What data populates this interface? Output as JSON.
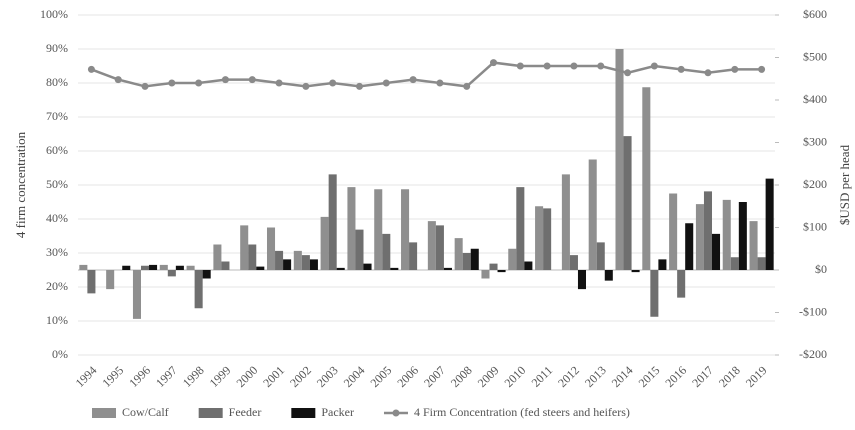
{
  "chart_data": {
    "type": "bar",
    "categories": [
      "1994",
      "1995",
      "1996",
      "1997",
      "1998",
      "1999",
      "2000",
      "2001",
      "2002",
      "2003",
      "2004",
      "2005",
      "2006",
      "2007",
      "2008",
      "2009",
      "2010",
      "2011",
      "2012",
      "2013",
      "2014",
      "2015",
      "2016",
      "2017",
      "2018",
      "2019"
    ],
    "y_label": "4 firm concentration",
    "y2_label": "$USD per head",
    "ylim": [
      0,
      100
    ],
    "yticks": [
      {
        "value": 0,
        "label": "0%"
      },
      {
        "value": 10,
        "label": "10%"
      },
      {
        "value": 20,
        "label": "20%"
      },
      {
        "value": 30,
        "label": "30%"
      },
      {
        "value": 40,
        "label": "40%"
      },
      {
        "value": 50,
        "label": "50%"
      },
      {
        "value": 60,
        "label": "60%"
      },
      {
        "value": 70,
        "label": "70%"
      },
      {
        "value": 80,
        "label": "80%"
      },
      {
        "value": 90,
        "label": "90%"
      },
      {
        "value": 100,
        "label": "100%"
      }
    ],
    "y2lim": [
      -200,
      600
    ],
    "y2ticks": [
      {
        "value": -200,
        "label": "-$200"
      },
      {
        "value": -100,
        "label": "-$100"
      },
      {
        "value": 0,
        "label": "$0"
      },
      {
        "value": 100,
        "label": "$100"
      },
      {
        "value": 200,
        "label": "$200"
      },
      {
        "value": 300,
        "label": "$300"
      },
      {
        "value": 400,
        "label": "$400"
      },
      {
        "value": 500,
        "label": "$500"
      },
      {
        "value": 600,
        "label": "$600"
      }
    ],
    "grid": true,
    "legend": "bottom",
    "series": [
      {
        "name": "Cow/Calf",
        "type": "bar",
        "axis": "y2",
        "color": "#8f8f8f",
        "values": [
          12,
          -45,
          -115,
          12,
          10,
          60,
          105,
          100,
          45,
          125,
          195,
          190,
          190,
          115,
          75,
          -20,
          50,
          150,
          225,
          260,
          520,
          430,
          180,
          155,
          165,
          115
        ]
      },
      {
        "name": "Feeder",
        "type": "bar",
        "axis": "y2",
        "color": "#6f6f6f",
        "values": [
          -55,
          0,
          10,
          -15,
          -90,
          20,
          60,
          45,
          35,
          225,
          95,
          85,
          65,
          105,
          40,
          15,
          195,
          145,
          35,
          65,
          315,
          -110,
          -65,
          185,
          30,
          30
        ]
      },
      {
        "name": "Packer",
        "type": "bar",
        "axis": "y2",
        "color": "#111111",
        "values": [
          0,
          10,
          12,
          10,
          -20,
          0,
          8,
          25,
          25,
          5,
          15,
          5,
          0,
          5,
          50,
          -5,
          20,
          0,
          -45,
          -25,
          -5,
          25,
          110,
          85,
          160,
          215
        ]
      },
      {
        "name": "4 Firm Concentration (fed steers and heifers)",
        "type": "line",
        "axis": "y",
        "color": "#8a8a8a",
        "values": [
          84,
          81,
          79,
          80,
          80,
          81,
          81,
          80,
          79,
          80,
          79,
          80,
          81,
          80,
          79,
          86,
          85,
          85,
          85,
          85,
          83,
          85,
          84,
          83,
          84,
          84
        ]
      }
    ]
  }
}
